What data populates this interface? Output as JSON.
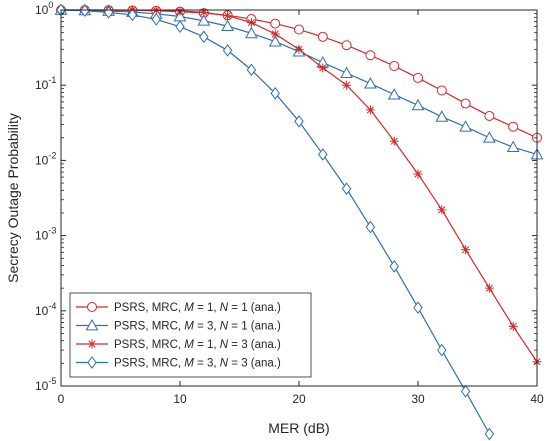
{
  "chart_data": {
    "type": "line",
    "title": "",
    "xlabel": "MER (dB)",
    "ylabel": "Secrecy Outage Probability",
    "xlim": [
      0,
      40
    ],
    "ylim": [
      1e-05,
      1
    ],
    "yscale": "log",
    "grid": false,
    "legend_position": "bottom-left",
    "x_ticks": [
      {
        "value": 0,
        "label": "0"
      },
      {
        "value": 10,
        "label": "10"
      },
      {
        "value": 20,
        "label": "20"
      },
      {
        "value": 30,
        "label": "30"
      },
      {
        "value": 40,
        "label": "40"
      }
    ],
    "y_ticks": [
      {
        "value": 1e-05,
        "base": "10",
        "exp": "-5"
      },
      {
        "value": 0.0001,
        "base": "10",
        "exp": "-4"
      },
      {
        "value": 0.001,
        "base": "10",
        "exp": "-3"
      },
      {
        "value": 0.01,
        "base": "10",
        "exp": "-2"
      },
      {
        "value": 0.1,
        "base": "10",
        "exp": "-1"
      },
      {
        "value": 1,
        "base": "10",
        "exp": "0"
      }
    ],
    "series": [
      {
        "name": "PSRS, MRC, M = 1, N = 1 (ana.)",
        "legend": {
          "prefix": "PSRS, MRC, ",
          "v1": "M",
          "mid": " = 1, ",
          "v2": "N",
          "suffix": " = 1 (ana.)"
        },
        "color": "#d62728",
        "marker": "circle",
        "x": [
          0,
          2,
          4,
          6,
          8,
          10,
          12,
          14,
          16,
          18,
          20,
          22,
          24,
          26,
          28,
          30,
          32,
          34,
          36,
          38,
          40
        ],
        "y": [
          1.0,
          1.0,
          0.995,
          0.99,
          0.975,
          0.95,
          0.91,
          0.85,
          0.76,
          0.66,
          0.55,
          0.44,
          0.34,
          0.25,
          0.18,
          0.125,
          0.085,
          0.057,
          0.039,
          0.028,
          0.02
        ]
      },
      {
        "name": "PSRS, MRC, M = 3, N = 1 (ana.)",
        "legend": {
          "prefix": "PSRS, MRC, ",
          "v1": "M",
          "mid": " = 3, ",
          "v2": "N",
          "suffix": " = 1 (ana.)"
        },
        "color": "#2e6fb5",
        "marker": "triangle",
        "x": [
          0,
          2,
          4,
          6,
          8,
          10,
          12,
          14,
          16,
          18,
          20,
          22,
          24,
          26,
          28,
          30,
          32,
          34,
          36,
          38,
          40
        ],
        "y": [
          1.0,
          0.99,
          0.97,
          0.94,
          0.89,
          0.82,
          0.72,
          0.61,
          0.49,
          0.38,
          0.28,
          0.2,
          0.145,
          0.105,
          0.075,
          0.054,
          0.038,
          0.028,
          0.02,
          0.015,
          0.012
        ]
      },
      {
        "name": "PSRS, MRC, M = 1, N = 3 (ana.)",
        "legend": {
          "prefix": "PSRS, MRC, ",
          "v1": "M",
          "mid": " = 1, ",
          "v2": "N",
          "suffix": " = 3 (ana.)"
        },
        "color": "#d62728",
        "marker": "star",
        "x": [
          0,
          2,
          4,
          6,
          8,
          10,
          12,
          14,
          16,
          18,
          20,
          22,
          24,
          26,
          28,
          30,
          32,
          34,
          36,
          38,
          40
        ],
        "y": [
          1.0,
          1.0,
          1.0,
          0.995,
          0.99,
          0.97,
          0.93,
          0.84,
          0.68,
          0.48,
          0.3,
          0.17,
          0.1,
          0.047,
          0.018,
          0.0066,
          0.0022,
          0.00065,
          0.0002,
          6.2e-05,
          2.1e-05
        ]
      },
      {
        "name": "PSRS, MRC, M = 3, N = 3 (ana.)",
        "legend": {
          "prefix": "PSRS, MRC, ",
          "v1": "M",
          "mid": " = 3, ",
          "v2": "N",
          "suffix": " = 3 (ana.)"
        },
        "color": "#2e6fb5",
        "marker": "diamond",
        "x": [
          0,
          2,
          4,
          6,
          8,
          10,
          12,
          14,
          16,
          18,
          20,
          22,
          24,
          26,
          28,
          30,
          32,
          34,
          36
        ],
        "y": [
          1.0,
          0.98,
          0.93,
          0.86,
          0.75,
          0.6,
          0.44,
          0.29,
          0.16,
          0.078,
          0.033,
          0.012,
          0.0042,
          0.0013,
          0.00039,
          0.00011,
          3e-05,
          8.5e-06,
          2.3e-06
        ]
      }
    ]
  }
}
